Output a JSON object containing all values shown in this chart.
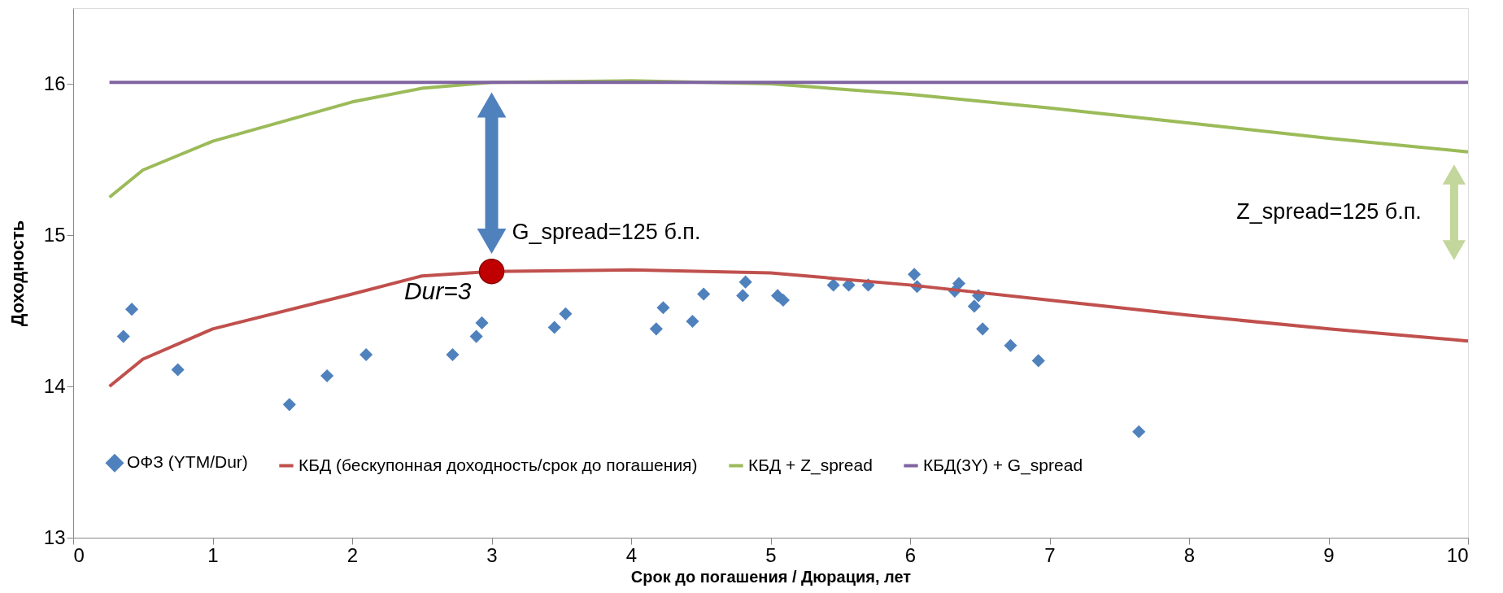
{
  "chart_data": {
    "type": "line",
    "xlabel": "Срок до погашения / Дюрация, лет",
    "ylabel": "Доходность",
    "xlim": [
      0,
      10
    ],
    "xticks": [
      0,
      1,
      2,
      3,
      4,
      5,
      6,
      7,
      8,
      9,
      10
    ],
    "ylim": [
      13,
      16.5
    ],
    "yticks": [
      13,
      14,
      15,
      16
    ],
    "grid": false,
    "legend": "bottom",
    "series": [
      {
        "name": "ОФЗ (YTM/Dur)",
        "type": "scatter",
        "marker": "diamond",
        "color": "#4f81bd",
        "x": [
          0.36,
          0.42,
          0.75,
          1.55,
          1.82,
          2.1,
          2.72,
          2.89,
          2.93,
          3.45,
          3.53,
          4.18,
          4.23,
          4.44,
          4.52,
          4.8,
          4.82,
          5.05,
          5.09,
          5.45,
          5.56,
          5.7,
          6.03,
          6.05,
          6.32,
          6.35,
          6.46,
          6.49,
          6.52,
          6.72,
          6.92,
          7.64
        ],
        "values": [
          14.33,
          14.51,
          14.11,
          13.88,
          14.07,
          14.21,
          14.21,
          14.33,
          14.42,
          14.39,
          14.48,
          14.38,
          14.52,
          14.43,
          14.61,
          14.6,
          14.69,
          14.6,
          14.57,
          14.67,
          14.67,
          14.67,
          14.74,
          14.66,
          14.63,
          14.68,
          14.53,
          14.6,
          14.38,
          14.27,
          14.17,
          13.7
        ]
      },
      {
        "name": "КБД (бескупонная доходность/срок до погашения)",
        "color": "#c0504d",
        "x": [
          0.26,
          0.5,
          1,
          2,
          2.5,
          3,
          4,
          5,
          6,
          7,
          8,
          9,
          10
        ],
        "values": [
          14.0,
          14.18,
          14.38,
          14.61,
          14.73,
          14.76,
          14.77,
          14.75,
          14.67,
          14.57,
          14.47,
          14.38,
          14.3
        ]
      },
      {
        "name": "КБД + Z_spread",
        "color": "#9bbb59",
        "x": [
          0.26,
          0.5,
          1,
          2,
          2.5,
          3,
          4,
          5,
          6,
          7,
          8,
          9,
          10
        ],
        "values": [
          15.25,
          15.43,
          15.62,
          15.88,
          15.97,
          16.01,
          16.02,
          16.0,
          15.93,
          15.84,
          15.74,
          15.64,
          15.55
        ]
      },
      {
        "name": "КБД(3Y) + G_spread",
        "color": "#8064a2",
        "x": [
          0.26,
          10
        ],
        "values": [
          16.01,
          16.01
        ]
      },
      {
        "type": "scatter",
        "marker": "circle",
        "color": "#c00000",
        "x": [
          3
        ],
        "values": [
          14.76
        ]
      }
    ],
    "annotations": [
      "Dur=3",
      "G_spread=125 б.п.",
      "Z_spread=125 б.п."
    ]
  }
}
